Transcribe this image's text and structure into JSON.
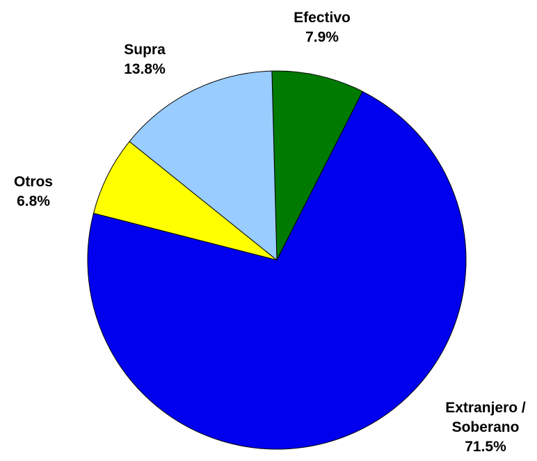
{
  "chart_data": {
    "type": "pie",
    "title": "",
    "slices": [
      {
        "label": [
          "Efectivo"
        ],
        "value": 7.9,
        "value_label": "7.9%",
        "color": "#007A00"
      },
      {
        "label": [
          "Extranjero /",
          "Soberano"
        ],
        "value": 71.5,
        "value_label": "71.5%",
        "color": "#0000EE"
      },
      {
        "label": [
          "Otros"
        ],
        "value": 6.8,
        "value_label": "6.8%",
        "color": "#FFFF00"
      },
      {
        "label": [
          "Supra"
        ],
        "value": 13.8,
        "value_label": "13.8%",
        "color": "#99CCFF"
      }
    ],
    "start_angle_deg": -91.5,
    "direction": "clockwise",
    "legend": "none"
  }
}
